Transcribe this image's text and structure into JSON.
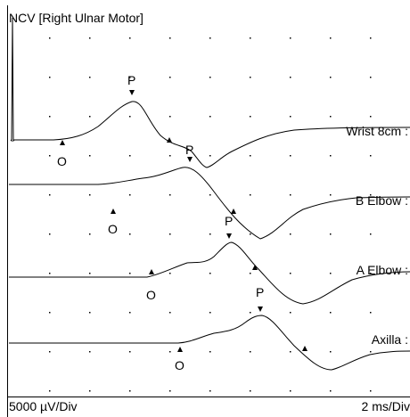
{
  "title": "NCV [Right Ulnar Motor]",
  "traces": [
    {
      "label": "Wrist 8cm :",
      "onset": "O",
      "peak": "P"
    },
    {
      "label": "B Elbow :",
      "onset": "O",
      "peak": "P"
    },
    {
      "label": "A Elbow :",
      "onset": "O",
      "peak": "P"
    },
    {
      "label": "Axilla :",
      "onset": "O",
      "peak": "P"
    }
  ],
  "footer": {
    "amplitude_scale": "5000 µV/Div",
    "time_scale": "2 ms/Div"
  }
}
